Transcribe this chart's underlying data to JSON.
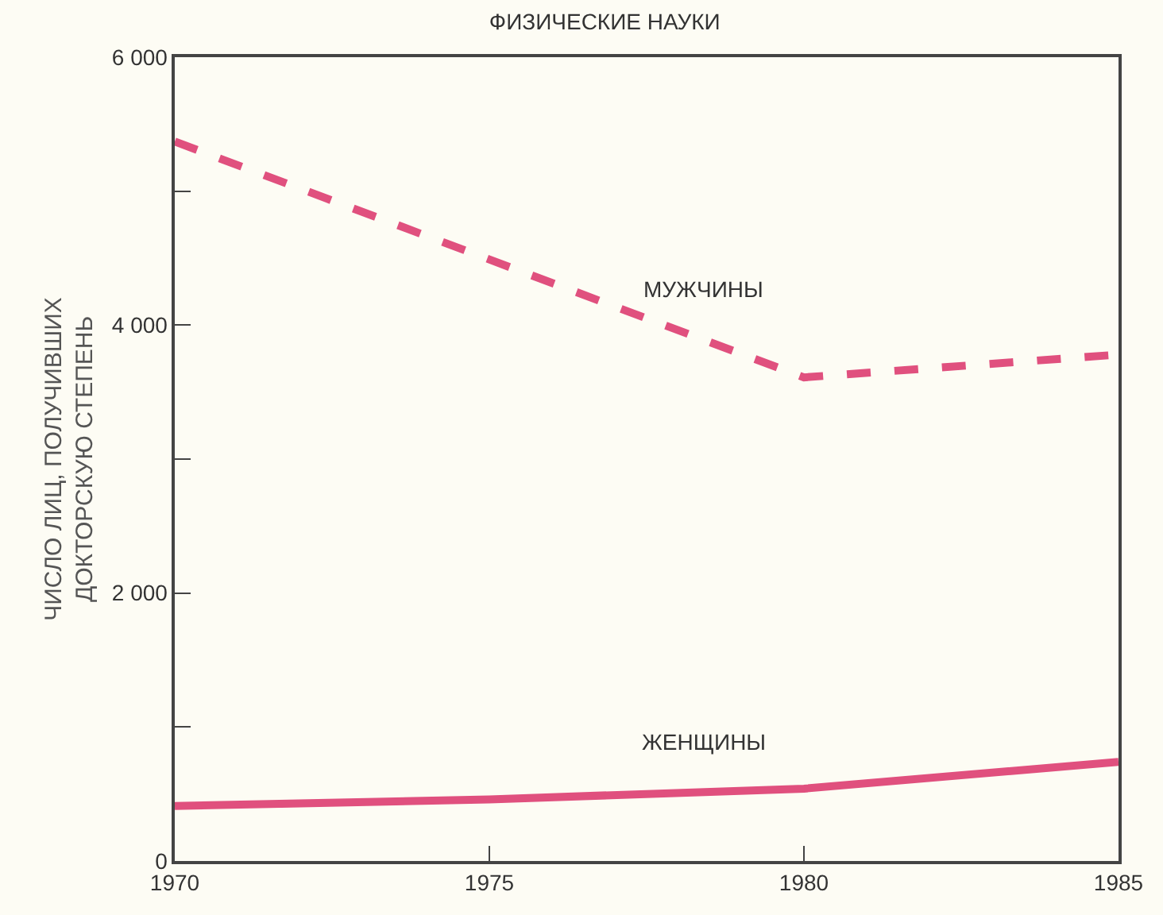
{
  "chart_data": {
    "type": "line",
    "title": "ФИЗИЧЕСКИЕ НАУКИ",
    "ylabel": "ЧИСЛО ЛИЦ, ПОЛУЧИВШИХ\nДОКТОРСКУЮ СТЕПЕНЬ",
    "x": [
      1970,
      1980,
      1985
    ],
    "series": [
      {
        "name": "МУЖЧИНЫ",
        "color": "#e0507e",
        "values": [
          5370,
          3610,
          3780
        ],
        "line_style": "dashed"
      },
      {
        "name": "ЖЕНЩИНЫ",
        "color": "#e0507e",
        "x": [
          1970,
          1975,
          1980,
          1985
        ],
        "values": [
          410,
          460,
          540,
          740
        ],
        "line_style": "solid"
      }
    ],
    "xlim": [
      1970,
      1985
    ],
    "xticks": [
      1970,
      1975,
      1980,
      1985
    ],
    "ylim": [
      0,
      6000
    ],
    "yticks": [
      {
        "value": 0,
        "label": "0"
      },
      {
        "value": 1000,
        "label": null
      },
      {
        "value": 2000,
        "label": "2 000"
      },
      {
        "value": 3000,
        "label": null
      },
      {
        "value": 4000,
        "label": "4 000"
      },
      {
        "value": 5000,
        "label": null
      },
      {
        "value": 6000,
        "label": "6 000"
      }
    ],
    "grid": false,
    "legend": false,
    "marker": "none"
  }
}
